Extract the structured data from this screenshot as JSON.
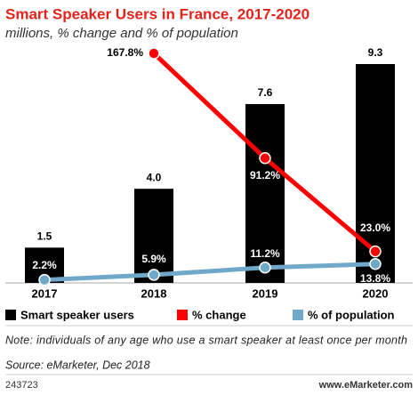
{
  "chart_data": {
    "type": "bar",
    "title": "Smart Speaker Users in France, 2017-2020",
    "subtitle": "millions, % change and % of population",
    "categories": [
      "2017",
      "2018",
      "2019",
      "2020"
    ],
    "series": [
      {
        "name": "Smart speaker users",
        "type": "bar",
        "color": "#000000",
        "values": [
          1.5,
          4.0,
          7.6,
          9.3
        ],
        "value_labels": [
          "1.5",
          "4.0",
          "7.6",
          "9.3"
        ]
      },
      {
        "name": "% change",
        "type": "line",
        "color": "#ff0000",
        "values": [
          null,
          167.8,
          91.2,
          23.0
        ],
        "value_labels": [
          null,
          "167.8%",
          "91.2%",
          "23.0%"
        ]
      },
      {
        "name": "% of population",
        "type": "line",
        "color": "#6fa8c8",
        "values": [
          2.2,
          5.9,
          11.2,
          13.8
        ],
        "value_labels": [
          "2.2%",
          "5.9%",
          "11.2%",
          "13.8%"
        ]
      }
    ],
    "note": "Note: individuals of any age who use a smart speaker at least once per month",
    "source": "Source: eMarketer, Dec 2018",
    "chart_id": "243723",
    "brand": "www.eMarketer.com"
  }
}
